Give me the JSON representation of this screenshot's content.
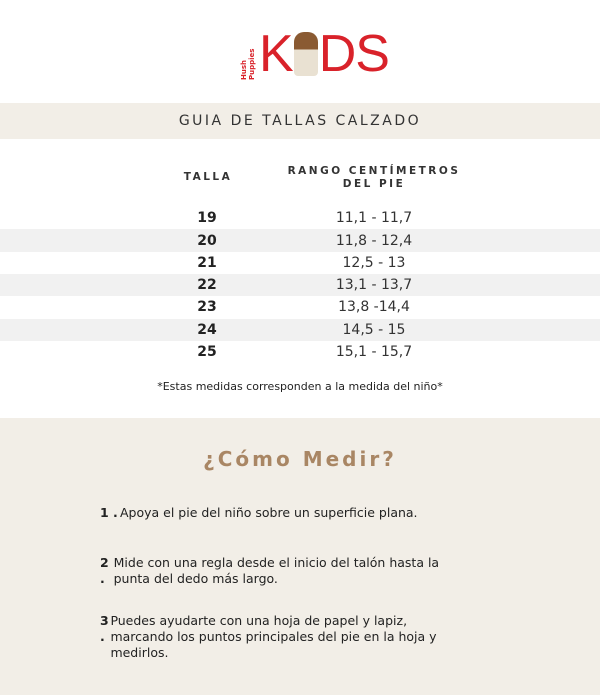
{
  "logo": {
    "brand": "Hush Puppies",
    "text_left": "K",
    "text_right": "DS",
    "colors": {
      "brand": "#d9222a"
    }
  },
  "title": "GUIA DE TALLAS CALZADO",
  "table": {
    "headers": [
      "TALLA",
      "RANGO CENTÍMETROS",
      "DEL PIE"
    ],
    "rows": [
      {
        "talla": "19",
        "rango": "11,1 - 11,7"
      },
      {
        "talla": "20",
        "rango": "11,8 - 12,4"
      },
      {
        "talla": "21",
        "rango": "12,5 - 13"
      },
      {
        "talla": "22",
        "rango": "13,1 - 13,7"
      },
      {
        "talla": "23",
        "rango": "13,8 -14,4"
      },
      {
        "talla": "24",
        "rango": "14,5 - 15"
      },
      {
        "talla": "25",
        "rango": "15,1 - 15,7"
      }
    ]
  },
  "note": "*Estas medidas corresponden a la medida del niño*",
  "how": {
    "title": "¿Cómo Medir?",
    "steps": [
      {
        "n": "1 .",
        "text": "Apoya el pie del niño sobre un superficie plana."
      },
      {
        "n": "2 .",
        "text": "Mide con una regla desde el inicio del talón hasta la punta del dedo más largo."
      },
      {
        "n": "3 .",
        "text": "Puedes ayudarte con una hoja de papel y lapiz, marcando los puntos principales del pie en la hoja y medirlos."
      }
    ]
  }
}
